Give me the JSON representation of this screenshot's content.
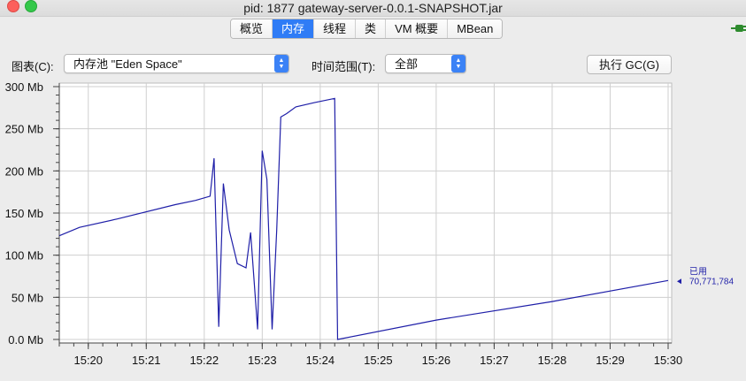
{
  "window": {
    "title": "pid: 1877 gateway-server-0.0.1-SNAPSHOT.jar"
  },
  "tabs": [
    {
      "label": "概览",
      "active": false
    },
    {
      "label": "内存",
      "active": true
    },
    {
      "label": "线程",
      "active": false
    },
    {
      "label": "类",
      "active": false
    },
    {
      "label": "VM 概要",
      "active": false
    },
    {
      "label": "MBean",
      "active": false
    }
  ],
  "controls": {
    "chart_label": "图表(C):",
    "chart_value": "内存池 \"Eden Space\"",
    "range_label": "时间范围(T):",
    "range_value": "全部",
    "gc_button": "执行 GC(G)"
  },
  "icons": {
    "connection": "plug-icon",
    "stepper": "stepper-icon"
  },
  "colors": {
    "series": "#1f1fa8",
    "accent": "#2f7cf6"
  },
  "chart_data": {
    "type": "line",
    "title": "",
    "xlabel": "",
    "ylabel": "",
    "x_ticks": [
      "15:20",
      "15:21",
      "15:22",
      "15:23",
      "15:24",
      "15:25",
      "15:26",
      "15:27",
      "15:28",
      "15:29",
      "15:30"
    ],
    "y_ticks": [
      "0.0 Mb",
      "50 Mb",
      "100 Mb",
      "150 Mb",
      "200 Mb",
      "250 Mb",
      "300 Mb"
    ],
    "ylim": [
      0,
      300
    ],
    "xlim_minutes": [
      19.5,
      30.0
    ],
    "grid": true,
    "series": [
      {
        "name": "已用",
        "x": [
          19.5,
          19.85,
          20.5,
          21.5,
          21.85,
          22.1,
          22.17,
          22.25,
          22.33,
          22.43,
          22.57,
          22.72,
          22.8,
          22.92,
          23.0,
          23.08,
          23.17,
          23.25,
          23.32,
          23.42,
          23.58,
          23.9,
          24.25,
          24.3,
          26.0,
          28.0,
          30.0
        ],
        "values": [
          123,
          133,
          143,
          160,
          165,
          170,
          215,
          15,
          185,
          130,
          90,
          85,
          127,
          12,
          224,
          190,
          12,
          130,
          264,
          268,
          276,
          281,
          286,
          0,
          23,
          45,
          70
        ],
        "current_label": "已用",
        "current_value": "70,771,784"
      }
    ]
  }
}
